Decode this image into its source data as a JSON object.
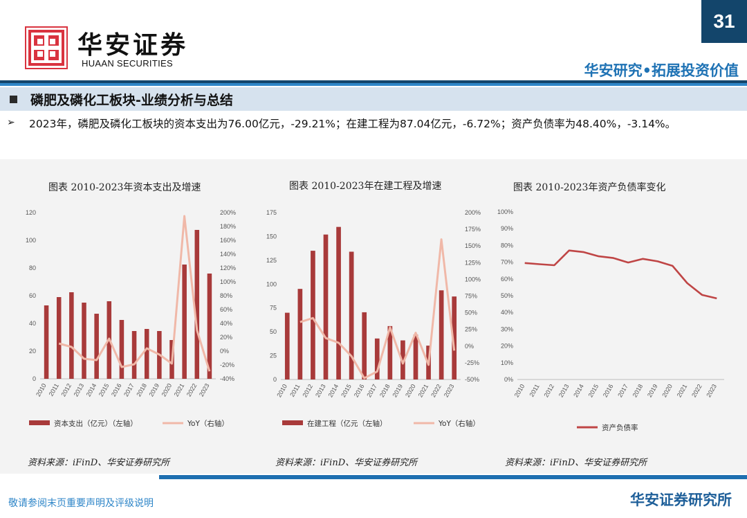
{
  "header": {
    "logo_cn": "华安证券",
    "logo_en": "HUAAN SECURITIES",
    "page_number": "31",
    "slogan": "华安研究•拓展投资价值"
  },
  "section": {
    "title": "磷肥及磷化工板块-业绩分析与总结"
  },
  "bullet": {
    "marker": "➢",
    "text": "2023年，磷肥及磷化工板块的资本支出为76.00亿元，-29.21%；在建工程为87.04亿元，-6.72%；资产负债率为48.40%，-3.14%。"
  },
  "colors": {
    "bar": "#a83a3a",
    "yoy_line": "#f0b8a8",
    "ratio_line": "#bf4545",
    "dark_blue": "#13456b",
    "accent_blue": "#2f86c8"
  },
  "chart_data": [
    {
      "id": "capex",
      "type": "bar+line",
      "title": "图表 2010-2023年资本支出及增速",
      "categories": [
        "2010",
        "2011",
        "2012",
        "2013",
        "2014",
        "2015",
        "2016",
        "2017",
        "2018",
        "2019",
        "2020",
        "2021",
        "2022",
        "2023"
      ],
      "left_axis": {
        "min": 0,
        "max": 120,
        "ticks": [
          "0",
          "20",
          "40",
          "60",
          "80",
          "100",
          "120"
        ]
      },
      "right_axis": {
        "min": -40,
        "max": 200,
        "ticks": [
          "-40%",
          "-20%",
          "0%",
          "20%",
          "40%",
          "60%",
          "80%",
          "100%",
          "120%",
          "140%",
          "160%",
          "180%",
          "200%"
        ]
      },
      "series": [
        {
          "name": "资本支出（亿元）（左轴）",
          "kind": "bar",
          "axis": "left",
          "values": [
            53,
            59,
            62.5,
            55,
            47,
            56,
            42.5,
            34.5,
            36,
            34.5,
            28,
            82.5,
            107.5,
            76
          ]
        },
        {
          "name": "YoY（右轴）",
          "kind": "line",
          "axis": "right",
          "values": [
            null,
            11,
            6,
            -11,
            -13,
            18,
            -23,
            -19,
            4,
            -5,
            -18,
            195,
            30,
            -29.21
          ]
        }
      ],
      "source": "资料来源：iFinD、华安证券研究所"
    },
    {
      "id": "cip",
      "type": "bar+line",
      "title": "图表 2010-2023年在建工程及增速",
      "categories": [
        "2010",
        "2011",
        "2012",
        "2013",
        "2014",
        "2015",
        "2016",
        "2017",
        "2018",
        "2019",
        "2020",
        "2021",
        "2022",
        "2023"
      ],
      "left_axis": {
        "min": 0,
        "max": 175,
        "ticks": [
          "0",
          "25",
          "50",
          "75",
          "100",
          "125",
          "150",
          "175"
        ]
      },
      "right_axis": {
        "min": -50,
        "max": 200,
        "ticks": [
          "-50%",
          "-25%",
          "0%",
          "25%",
          "50%",
          "75%",
          "100%",
          "125%",
          "150%",
          "175%",
          "200%"
        ]
      },
      "series": [
        {
          "name": "在建工程（亿元（左轴）",
          "kind": "bar",
          "axis": "left",
          "values": [
            70,
            95,
            135,
            152,
            160,
            134,
            70.5,
            43,
            56,
            41,
            47,
            35.5,
            93.5,
            87.04
          ]
        },
        {
          "name": "YoY（右轴）",
          "kind": "line",
          "axis": "right",
          "values": [
            null,
            36,
            42,
            12,
            5,
            -15,
            -48,
            -38,
            28,
            -26,
            20,
            -28,
            160,
            -6.72
          ]
        }
      ],
      "source": "资料来源：iFinD、华安证券研究所"
    },
    {
      "id": "debt_ratio",
      "type": "line",
      "title": "图表 2010-2023年资产负债率变化",
      "categories": [
        "2010",
        "2011",
        "2012",
        "2013",
        "2014",
        "2015",
        "2016",
        "2017",
        "2018",
        "2019",
        "2020",
        "2021",
        "2022",
        "2023"
      ],
      "left_axis": {
        "min": 0,
        "max": 100,
        "ticks": [
          "0%",
          "10%",
          "20%",
          "30%",
          "40%",
          "50%",
          "60%",
          "70%",
          "80%",
          "90%",
          "100%"
        ]
      },
      "series": [
        {
          "name": "资产负债率",
          "kind": "line",
          "axis": "left",
          "values": [
            69.5,
            68.8,
            68.2,
            77,
            76,
            73.5,
            72.5,
            69.8,
            72,
            70.5,
            67.8,
            57.5,
            50.5,
            48.4
          ]
        }
      ],
      "source": "资料来源：iFinD、华安证券研究所"
    }
  ],
  "footer": {
    "disclaimer": "敬请参阅末页重要声明及评级说明",
    "brand": "华安证券研究所"
  }
}
